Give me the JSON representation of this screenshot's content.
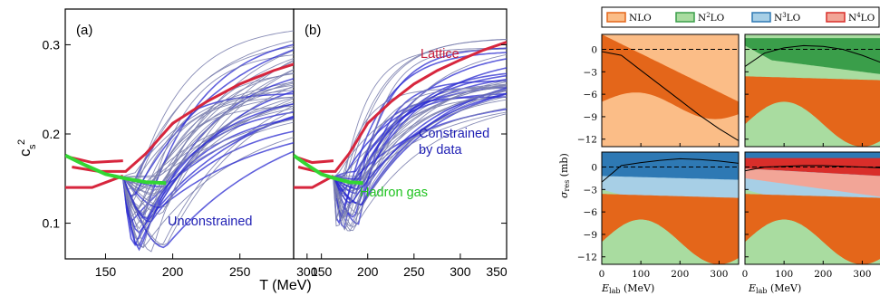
{
  "figure": {
    "left_figure": {
      "ylabel": "c",
      "ylabel_sub": "s",
      "ylabel_sup": "2",
      "xlabel": "T (MeV)",
      "xlim": [
        120,
        350
      ],
      "ylim": [
        0.06,
        0.34
      ],
      "xticks": [
        "150",
        "200",
        "250",
        "300",
        "350"
      ],
      "xtick_values": [
        150,
        200,
        250,
        300,
        350
      ],
      "yticks": [
        "0.1",
        "0.2",
        "0.3"
      ],
      "ytick_values": [
        0.1,
        0.2,
        0.3
      ],
      "panel_a_label": "(a)",
      "panel_b_label": "(b)",
      "label_unconstrained": "Unconstrained",
      "label_lattice": "Lattice",
      "label_constrained_1": "Constrained",
      "label_constrained_2": "by data",
      "label_hadron_gas": "Hadron gas",
      "colors": {
        "ensemble": "#7b7fae",
        "lattice": "#d7263d",
        "hadron_gas": "#33d633",
        "text_blue": "#1f1fb4",
        "text_red": "#c81e3c",
        "text_green": "#1fc31f"
      }
    },
    "right_figure": {
      "legend": [
        "NLO",
        "N2LO",
        "N3LO",
        "N4LO"
      ],
      "legend_display": [
        {
          "base": "NLO",
          "sup": "",
          "tail": ""
        },
        {
          "base": "N",
          "sup": "2",
          "tail": "LO"
        },
        {
          "base": "N",
          "sup": "3",
          "tail": "LO"
        },
        {
          "base": "N",
          "sup": "4",
          "tail": "LO"
        }
      ],
      "ylabel": "σres (mb)",
      "ylabel_main": "σ",
      "ylabel_sub": "res",
      "ylabel_tail": " (mb)",
      "xlabel_main": "E",
      "xlabel_sub": "lab",
      "xlabel_tail": " (MeV)",
      "xlim": [
        0,
        350
      ],
      "ylim": [
        -13,
        2
      ],
      "xticks": [
        "0",
        "100",
        "200",
        "300"
      ],
      "xtick_values": [
        0,
        100,
        200,
        300
      ],
      "yticks": [
        "0",
        "−3",
        "−6",
        "−9",
        "−12"
      ],
      "ytick_values": [
        0,
        -3,
        -6,
        -9,
        -12
      ],
      "colors": {
        "nlo_light": "#fbbd87",
        "nlo_dark": "#e4661a",
        "n2lo_light": "#a9dca0",
        "n2lo_dark": "#3a9e4a",
        "n3lo_light": "#a7cfe6",
        "n3lo_dark": "#2e79b4",
        "n4lo_light": "#f2a597",
        "n4lo_dark": "#d92e2a"
      }
    }
  },
  "chart_data": [
    {
      "type": "line",
      "title": "(a)",
      "xlabel": "T (MeV)",
      "ylabel": "cs^2",
      "xlim": [
        120,
        350
      ],
      "ylim": [
        0.06,
        0.34
      ],
      "annotations": [
        "Unconstrained",
        "Lattice",
        "Hadron gas"
      ],
      "series": [
        {
          "name": "Lattice",
          "x": [
            125,
            145,
            165,
            180,
            200,
            225,
            250,
            275,
            300,
            325,
            350
          ],
          "y": [
            0.163,
            0.158,
            0.158,
            0.178,
            0.212,
            0.236,
            0.256,
            0.271,
            0.283,
            0.294,
            0.303
          ]
        },
        {
          "name": "Hadron gas",
          "x": [
            120,
            135,
            150,
            165,
            180,
            195
          ],
          "y": [
            0.176,
            0.165,
            0.155,
            0.15,
            0.146,
            0.145
          ]
        }
      ]
    },
    {
      "type": "line",
      "title": "(b)",
      "xlabel": "T (MeV)",
      "ylabel": "cs^2",
      "xlim": [
        120,
        350
      ],
      "ylim": [
        0.06,
        0.34
      ],
      "annotations": [
        "Lattice",
        "Constrained by data",
        "Hadron gas"
      ],
      "series": [
        {
          "name": "Lattice",
          "x": [
            125,
            145,
            165,
            180,
            200,
            225,
            250,
            275,
            300,
            325,
            350
          ],
          "y": [
            0.163,
            0.158,
            0.158,
            0.178,
            0.212,
            0.236,
            0.256,
            0.271,
            0.283,
            0.294,
            0.303
          ]
        },
        {
          "name": "Hadron gas",
          "x": [
            120,
            135,
            150,
            165,
            180,
            195
          ],
          "y": [
            0.176,
            0.165,
            0.155,
            0.15,
            0.146,
            0.145
          ]
        }
      ]
    },
    {
      "type": "area",
      "xlabel": "Elab (MeV)",
      "ylabel": "σres (mb)",
      "xlim": [
        0,
        350
      ],
      "ylim": [
        -13,
        2
      ],
      "legend": [
        "NLO",
        "N2LO",
        "N3LO",
        "N4LO"
      ],
      "panels": [
        "NLO",
        "N2LO",
        "N3LO",
        "N4LO"
      ],
      "series": [
        {
          "name": "NLO",
          "x": [
            0,
            50,
            100,
            150,
            200,
            250,
            300,
            350
          ],
          "y": [
            -0.3,
            -0.8,
            -2.8,
            -4.8,
            -6.8,
            -8.8,
            -10.6,
            -12.2
          ]
        },
        {
          "name": "N2LO",
          "x": [
            0,
            50,
            100,
            150,
            200,
            250,
            300,
            350
          ],
          "y": [
            -2.3,
            -0.5,
            0.2,
            0.5,
            0.4,
            0.0,
            -0.8,
            -1.8
          ]
        },
        {
          "name": "N3LO",
          "x": [
            0,
            50,
            100,
            150,
            200,
            250,
            300,
            350
          ],
          "y": [
            -2.0,
            0.2,
            0.6,
            0.9,
            1.1,
            1.0,
            0.8,
            0.5
          ]
        },
        {
          "name": "N4LO",
          "x": [
            0,
            50,
            100,
            150,
            200,
            250,
            300,
            350
          ],
          "y": [
            -0.5,
            0.0,
            0.1,
            0.2,
            0.2,
            0.1,
            0.0,
            -0.1
          ]
        }
      ]
    }
  ]
}
